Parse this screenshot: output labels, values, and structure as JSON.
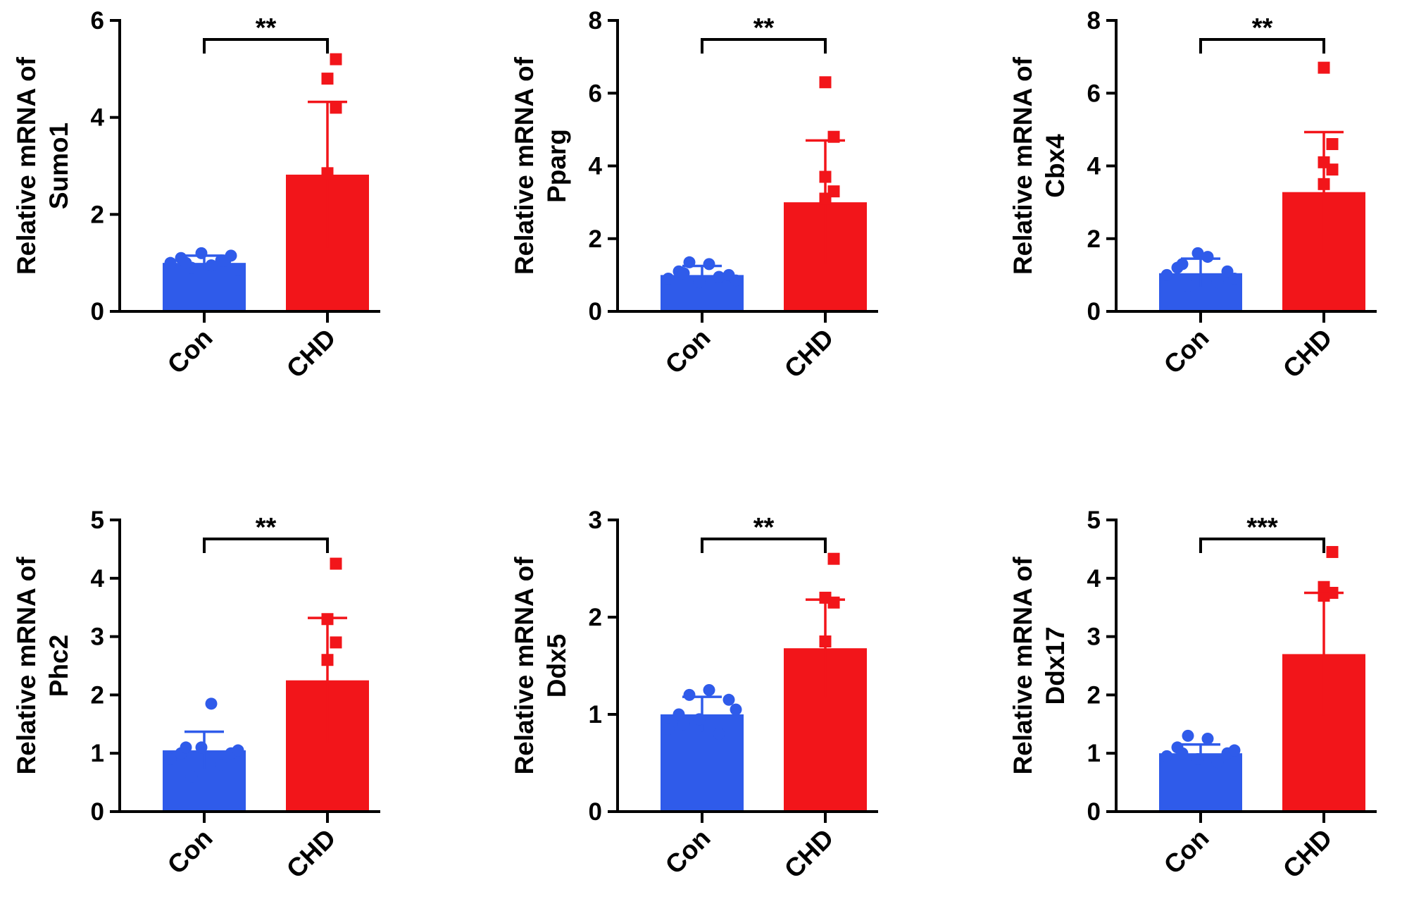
{
  "chart_data": [
    {
      "type": "bar",
      "categories": [
        "Con",
        "CHD"
      ],
      "ylabel_lines": [
        "Relative mRNA of",
        "Sumo1"
      ],
      "ylim": [
        0,
        6
      ],
      "yticks": [
        0,
        2,
        4,
        6
      ],
      "values": [
        1.0,
        2.82
      ],
      "errors": [
        0.15,
        1.5
      ],
      "points": [
        [
          1.0,
          1.1,
          0.9,
          1.2,
          0.95,
          1.05,
          1.15,
          0.85,
          1.0,
          1.05
        ],
        [
          2.85,
          4.2,
          4.8,
          5.2
        ]
      ],
      "significance": "**",
      "colors": [
        "#2f5bea",
        "#f2151a"
      ]
    },
    {
      "type": "bar",
      "categories": [
        "Con",
        "CHD"
      ],
      "ylabel_lines": [
        "Relative mRNA of",
        "Pparg"
      ],
      "ylim": [
        0,
        8
      ],
      "yticks": [
        0,
        2,
        4,
        6,
        8
      ],
      "values": [
        1.0,
        3.0
      ],
      "errors": [
        0.25,
        1.7
      ],
      "points": [
        [
          0.9,
          1.1,
          1.35,
          0.8,
          1.3,
          0.95,
          1.0,
          0.85,
          1.05
        ],
        [
          3.1,
          3.3,
          3.7,
          4.8,
          6.3
        ]
      ],
      "significance": "**",
      "colors": [
        "#2f5bea",
        "#f2151a"
      ]
    },
    {
      "type": "bar",
      "categories": [
        "Con",
        "CHD"
      ],
      "ylabel_lines": [
        "Relative mRNA of",
        "Cbx4"
      ],
      "ylim": [
        0,
        8
      ],
      "yticks": [
        0,
        2,
        4,
        6,
        8
      ],
      "values": [
        1.05,
        3.28
      ],
      "errors": [
        0.4,
        1.65
      ],
      "points": [
        [
          1.0,
          1.2,
          0.7,
          1.6,
          1.5,
          0.8,
          1.1,
          0.9,
          1.3
        ],
        [
          3.5,
          3.9,
          4.1,
          4.6,
          6.7
        ]
      ],
      "significance": "**",
      "colors": [
        "#2f5bea",
        "#f2151a"
      ]
    },
    {
      "type": "bar",
      "categories": [
        "Con",
        "CHD"
      ],
      "ylabel_lines": [
        "Relative mRNA of",
        "Phc2"
      ],
      "ylim": [
        0,
        5
      ],
      "yticks": [
        0,
        1,
        2,
        3,
        4,
        5
      ],
      "values": [
        1.05,
        2.25
      ],
      "errors": [
        0.32,
        1.07
      ],
      "points": [
        [
          0.9,
          1.0,
          0.6,
          1.1,
          1.85,
          0.8,
          1.0,
          1.05,
          1.1
        ],
        [
          2.6,
          2.9,
          3.3,
          4.25
        ]
      ],
      "significance": "**",
      "colors": [
        "#2f5bea",
        "#f2151a"
      ]
    },
    {
      "type": "bar",
      "categories": [
        "Con",
        "CHD"
      ],
      "ylabel_lines": [
        "Relative mRNA of",
        "Ddx5"
      ],
      "ylim": [
        0,
        3
      ],
      "yticks": [
        0,
        1,
        2,
        3
      ],
      "values": [
        1.0,
        1.68
      ],
      "errors": [
        0.18,
        0.5
      ],
      "points": [
        [
          0.85,
          1.0,
          1.2,
          0.95,
          1.25,
          0.8,
          1.15,
          1.05,
          0.9
        ],
        [
          1.75,
          2.15,
          2.2,
          2.6
        ]
      ],
      "significance": "**",
      "colors": [
        "#2f5bea",
        "#f2151a"
      ]
    },
    {
      "type": "bar",
      "categories": [
        "Con",
        "CHD"
      ],
      "ylabel_lines": [
        "Relative mRNA of",
        "Ddx17"
      ],
      "ylim": [
        0,
        5
      ],
      "yticks": [
        0,
        1,
        2,
        3,
        4,
        5
      ],
      "values": [
        1.0,
        2.7
      ],
      "errors": [
        0.15,
        1.05
      ],
      "points": [
        [
          0.95,
          1.1,
          1.3,
          0.9,
          1.25,
          0.85,
          1.0,
          1.05,
          1.0
        ],
        [
          3.7,
          3.75,
          3.85,
          4.45
        ]
      ],
      "significance": "***",
      "colors": [
        "#2f5bea",
        "#f2151a"
      ]
    }
  ]
}
